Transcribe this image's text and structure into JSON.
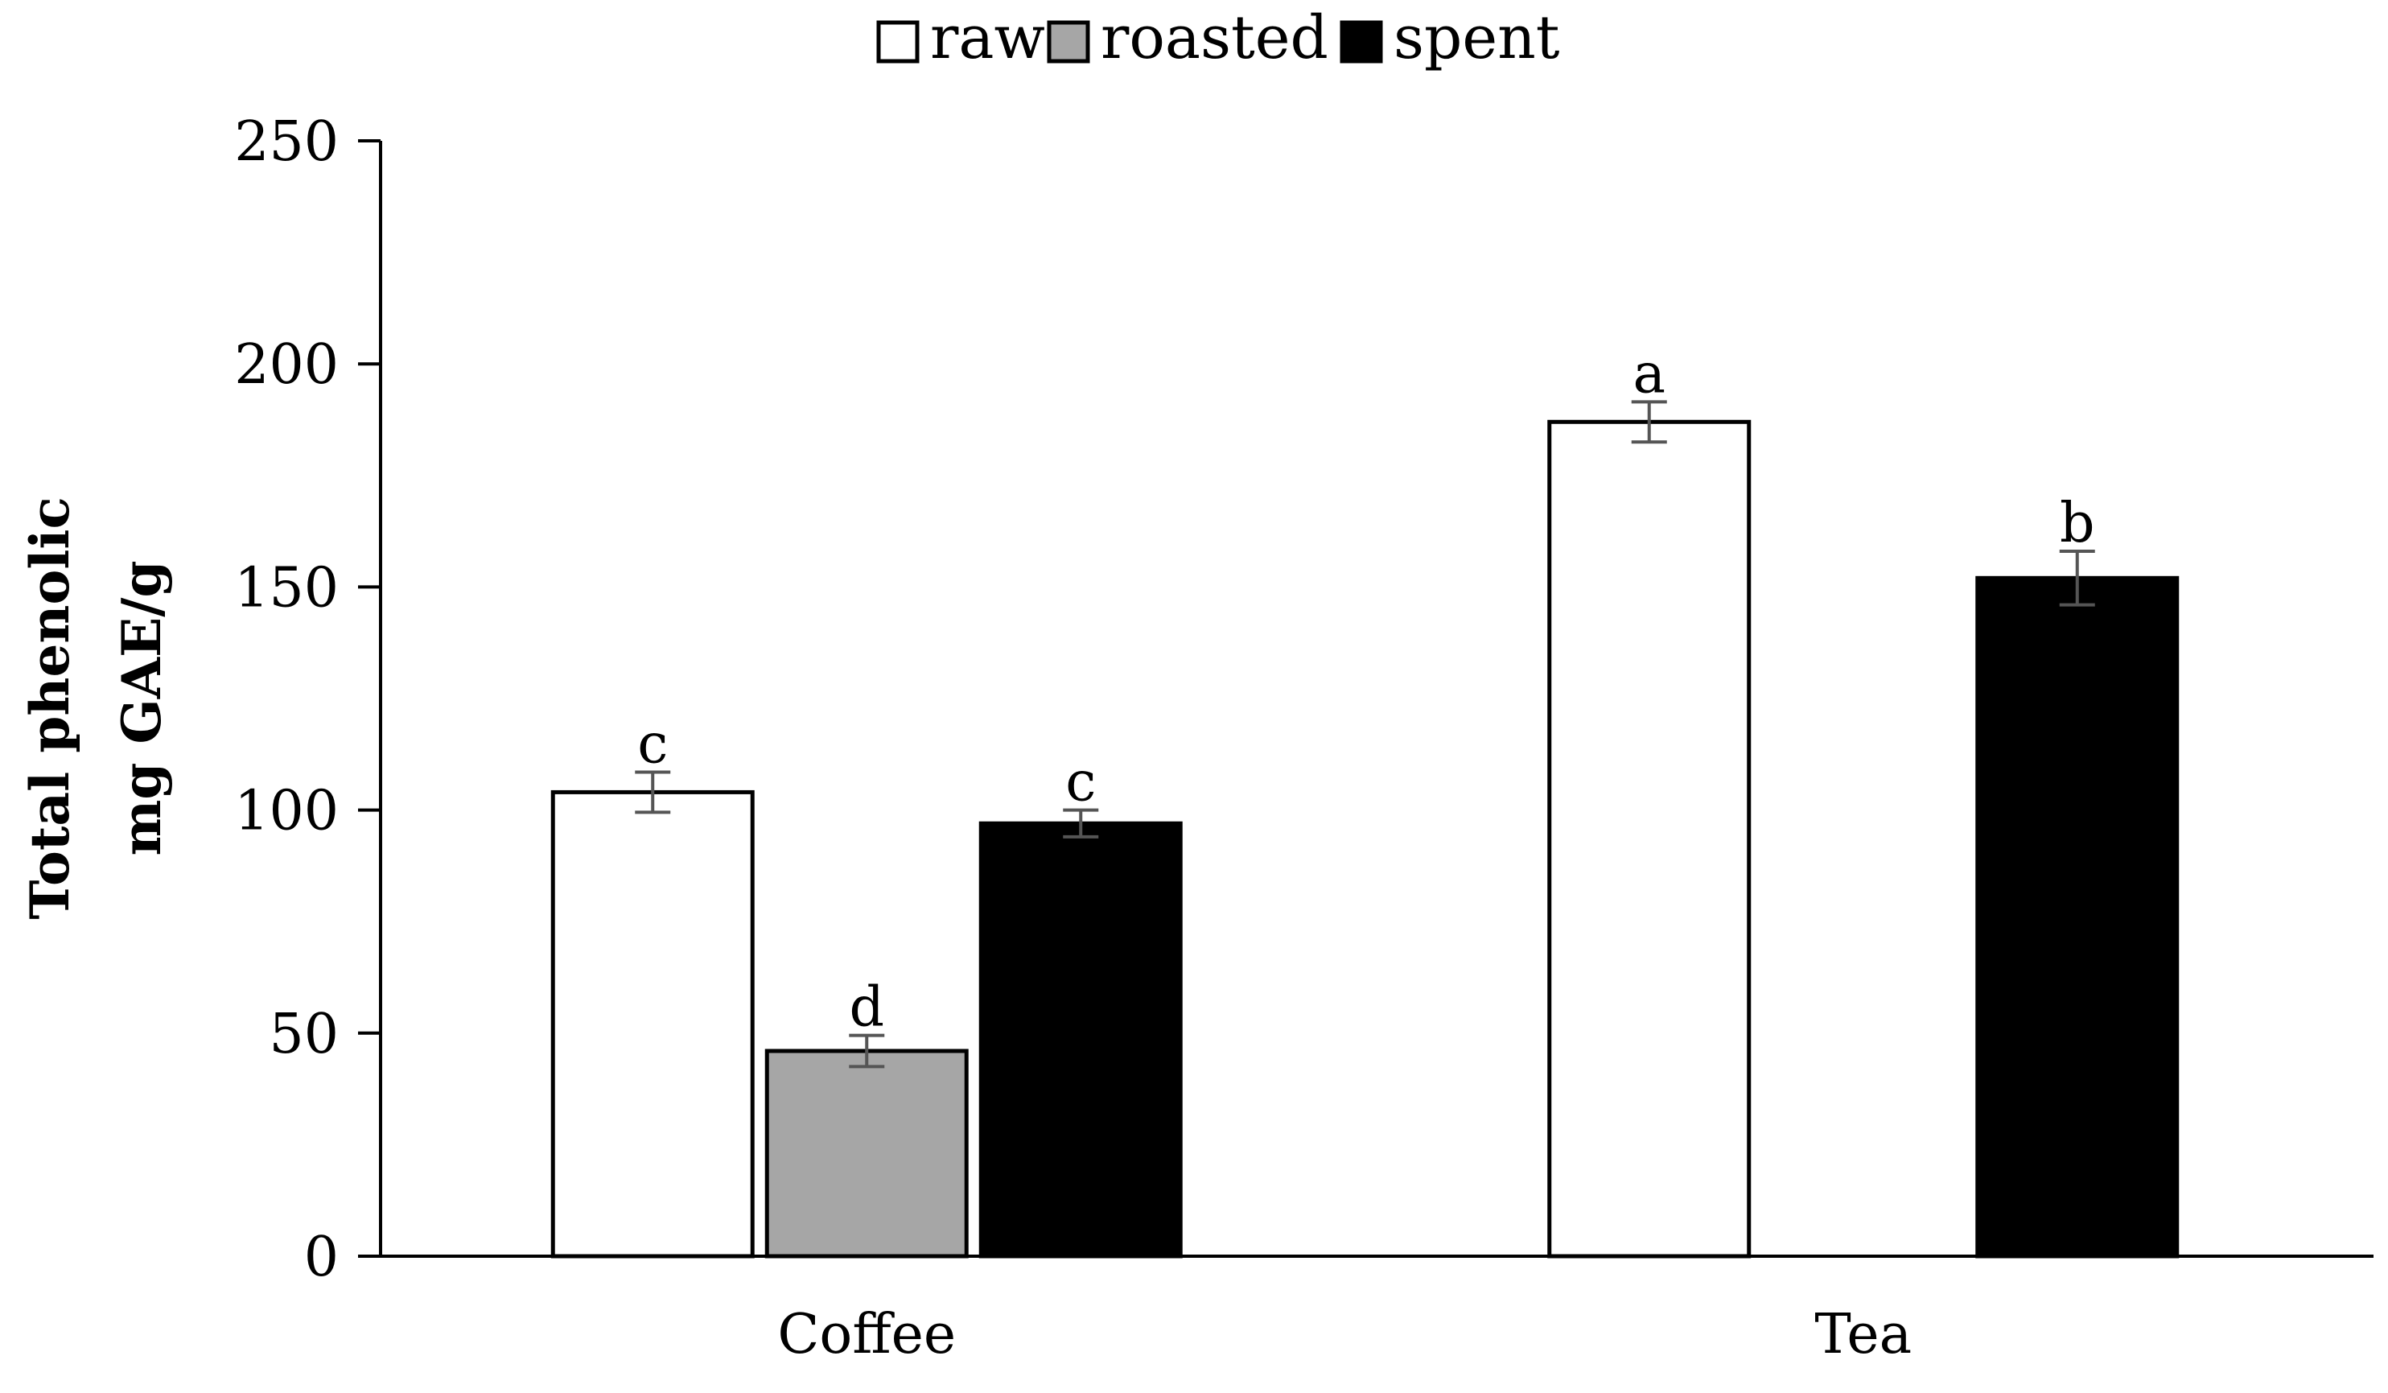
{
  "chart_data": {
    "type": "bar",
    "title": "",
    "xlabel": "",
    "ylabel": [
      "Total phenolic",
      "mg GAE/g"
    ],
    "ylim": [
      0,
      250
    ],
    "yticks": [
      0,
      50,
      100,
      150,
      200,
      250
    ],
    "grid": false,
    "legend_position": "top-center",
    "categories": [
      "Coffee",
      "Tea"
    ],
    "series": [
      {
        "name": "raw",
        "color": "#ffffff",
        "values": [
          104,
          187
        ],
        "errors": [
          4.5,
          4.5
        ],
        "labels": [
          "c",
          "a"
        ]
      },
      {
        "name": "roasted",
        "color": "#a6a6a6",
        "values": [
          46,
          null
        ],
        "errors": [
          3.5,
          null
        ],
        "labels": [
          "d",
          ""
        ]
      },
      {
        "name": "spent",
        "color": "#000000",
        "values": [
          97,
          152
        ],
        "errors": [
          3,
          6
        ],
        "labels": [
          "c",
          "b"
        ]
      }
    ]
  }
}
